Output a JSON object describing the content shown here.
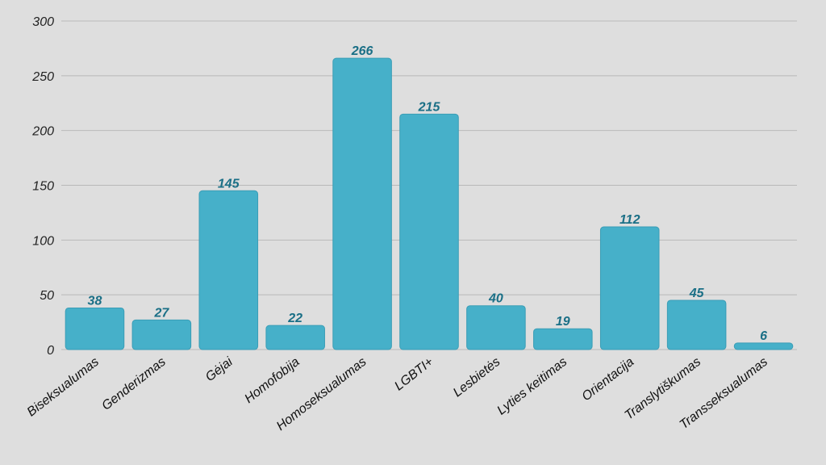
{
  "colors": {
    "background": "#dedede",
    "bar": "#46b0c9",
    "bar_stroke": "#3a9db6",
    "data_label": "#1a6f86",
    "grid": "#b9b9b9"
  },
  "chart_data": {
    "type": "bar",
    "categories": [
      "Biseksualumas",
      "Genderizmas",
      "Gėjai",
      "Homofobija",
      "Homoseksualumas",
      "LGBTI+",
      "Lesbietės",
      "Lyties keitimas",
      "Orientacija",
      "Translytiškumas",
      "Transseksualumas"
    ],
    "values": [
      38,
      27,
      145,
      22,
      266,
      215,
      40,
      19,
      112,
      45,
      6
    ],
    "ylim": [
      0,
      300
    ],
    "yticks": [
      0,
      50,
      100,
      150,
      200,
      250,
      300
    ],
    "title": "",
    "xlabel": "",
    "ylabel": "",
    "grid": true,
    "data_labels": true
  }
}
